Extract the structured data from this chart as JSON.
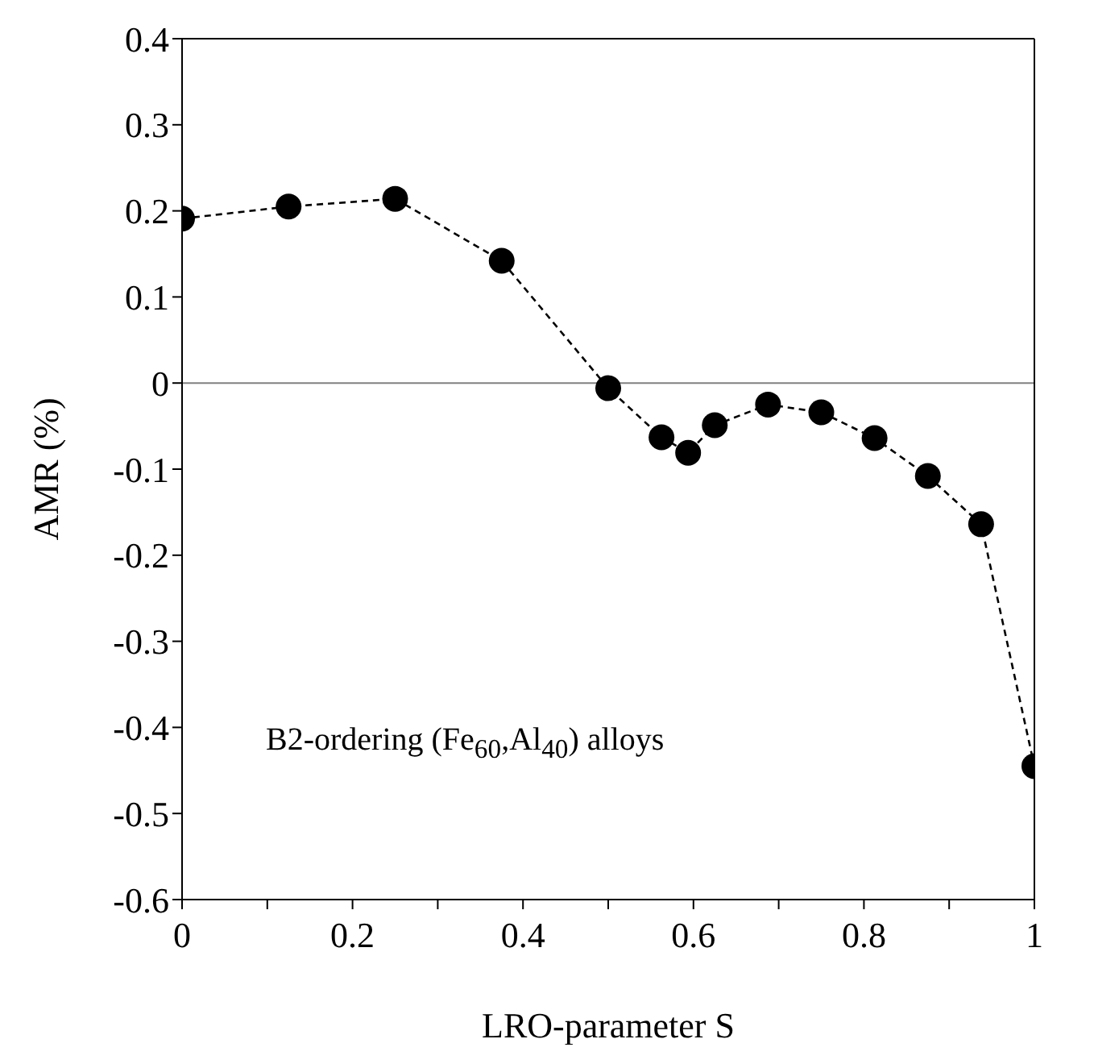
{
  "chart_data": {
    "type": "line",
    "xlabel": "LRO-parameter S",
    "ylabel": "AMR (%)",
    "x": [
      0,
      0.125,
      0.25,
      0.375,
      0.5,
      0.5625,
      0.59375,
      0.625,
      0.6875,
      0.75,
      0.8125,
      0.875,
      0.9375,
      1
    ],
    "series": [
      {
        "color": "#000000",
        "values": [
          0.191,
          0.205,
          0.214,
          0.142,
          -0.006,
          -0.063,
          -0.081,
          -0.049,
          -0.025,
          -0.034,
          -0.064,
          -0.108,
          -0.164,
          -0.445
        ]
      }
    ],
    "xlim": [
      0,
      1
    ],
    "ylim": [
      -0.6,
      0.4
    ],
    "xticks": [
      0,
      {
        "value": 0.1,
        "label": null
      },
      0.2,
      {
        "value": 0.3,
        "label": null
      },
      0.4,
      {
        "value": 0.5,
        "label": null
      },
      0.6,
      {
        "value": 0.7,
        "label": null
      },
      0.8,
      {
        "value": 0.9,
        "label": null
      },
      1
    ],
    "yticks": [
      -0.6,
      -0.5,
      -0.4,
      -0.3,
      -0.2,
      -0.1,
      0,
      0.1,
      0.2,
      0.3,
      0.4
    ],
    "ref_lines": [
      {
        "axis": "y",
        "value": 0,
        "color": "#808080"
      }
    ],
    "annotations": [
      "B2-ordering (Fe$_{60}$,Al$_{40}$) alloys"
    ],
    "marker": "circle",
    "line_style": "dashed",
    "grid": false,
    "legend": false
  }
}
